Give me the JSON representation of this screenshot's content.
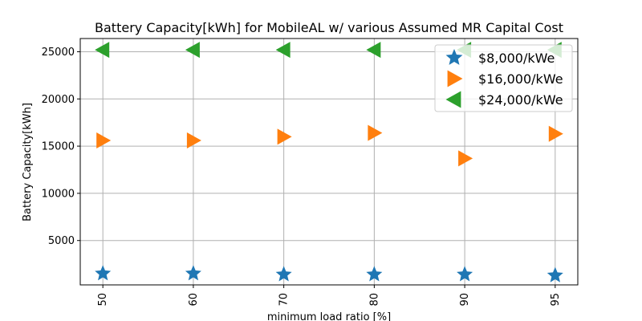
{
  "chart_data": {
    "type": "scatter",
    "title": "Battery Capacity[kWh] for MobileAL w/ various Assumed MR Capital Cost",
    "xlabel": "minimum load ratio [%]",
    "ylabel": "Battery Capacity[kWh]",
    "categories": [
      "50",
      "60",
      "70",
      "80",
      "90",
      "95"
    ],
    "ylim": [
      300,
      26400
    ],
    "yticks": [
      5000,
      10000,
      15000,
      20000,
      25000
    ],
    "grid": true,
    "legend_position": "top-right",
    "series": [
      {
        "name": "$8,000/kWe",
        "marker": "star",
        "color": "#1f77b4",
        "values": [
          1500,
          1500,
          1400,
          1400,
          1400,
          1300
        ]
      },
      {
        "name": "$16,000/kWe",
        "marker": "triangle-right",
        "color": "#ff7f0e",
        "values": [
          15600,
          15600,
          16000,
          16400,
          13700,
          16300
        ]
      },
      {
        "name": "$24,000/kWe",
        "marker": "triangle-left",
        "color": "#2ca02c",
        "values": [
          25200,
          25200,
          25200,
          25200,
          25200,
          25200
        ]
      }
    ]
  }
}
